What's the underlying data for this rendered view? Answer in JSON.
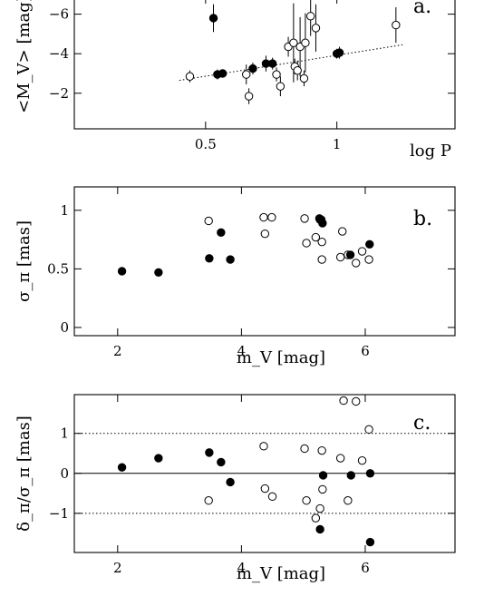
{
  "chart_data": [
    {
      "type": "scatter",
      "panel_label": "a.",
      "xlabel": "log P",
      "ylabel": "<M_V> [mag]",
      "xlim": [
        0,
        1.45
      ],
      "ylim": [
        -0.2,
        -6.9
      ],
      "y_inverted": true,
      "xticks": [
        0.5,
        1
      ],
      "xtick_labels": [
        "0.5",
        "1"
      ],
      "yticks": [
        -2,
        -4,
        -6
      ],
      "ytick_labels": [
        "−2",
        "−4",
        "−6"
      ],
      "fit_line": {
        "x": [
          0.4,
          1.25
        ],
        "y": [
          -2.65,
          -4.45
        ],
        "style": "dotted"
      },
      "filled": {
        "x": [
          0.53,
          0.545,
          0.565,
          0.68,
          0.73,
          0.755,
          1.0,
          1.01
        ],
        "y": [
          -5.8,
          -2.95,
          -3.0,
          -3.25,
          -3.5,
          -3.5,
          -4.0,
          -4.05
        ],
        "err": [
          0.7,
          0.25,
          0.2,
          0.3,
          0.4,
          0.3,
          0.25,
          0.3
        ]
      },
      "open": {
        "x": [
          0.44,
          0.655,
          0.665,
          0.77,
          0.785,
          0.815,
          0.835,
          0.84,
          0.85,
          0.86,
          0.875,
          0.88,
          0.9,
          0.92,
          1.225
        ],
        "y": [
          -2.85,
          -2.95,
          -1.85,
          -2.95,
          -2.35,
          -4.35,
          -4.55,
          -3.35,
          -3.15,
          -4.35,
          -2.75,
          -4.55,
          -5.9,
          -5.3,
          -5.45
        ],
        "err": [
          0.3,
          0.5,
          0.4,
          0.35,
          0.5,
          0.5,
          2.0,
          0.4,
          0.5,
          1.5,
          0.4,
          1.5,
          1.0,
          1.2,
          0.9
        ]
      }
    },
    {
      "type": "scatter",
      "panel_label": "b.",
      "xlabel": "m_V [mag]",
      "ylabel": "σ_π [mas]",
      "xlim": [
        1.3,
        7.45
      ],
      "ylim": [
        -0.07,
        1.2
      ],
      "xticks": [
        2,
        4,
        6
      ],
      "xtick_labels": [
        "2",
        "4",
        "6"
      ],
      "yticks": [
        0,
        0.5,
        1
      ],
      "ytick_labels": [
        "0",
        "0.5",
        "1"
      ],
      "filled": {
        "x": [
          2.07,
          2.66,
          3.48,
          3.67,
          3.82,
          5.26,
          5.29,
          5.31,
          5.76,
          6.07
        ],
        "y": [
          0.48,
          0.47,
          0.59,
          0.81,
          0.58,
          0.93,
          0.92,
          0.89,
          0.62,
          0.71
        ]
      },
      "open": {
        "x": [
          3.47,
          4.36,
          4.38,
          4.49,
          5.02,
          5.05,
          5.2,
          5.27,
          5.3,
          5.3,
          5.6,
          5.63,
          5.72,
          5.85,
          5.95,
          6.06
        ],
        "y": [
          0.91,
          0.94,
          0.8,
          0.94,
          0.93,
          0.72,
          0.77,
          0.92,
          0.73,
          0.58,
          0.6,
          0.82,
          0.62,
          0.55,
          0.65,
          0.58
        ]
      }
    },
    {
      "type": "scatter",
      "panel_label": "c.",
      "xlabel": "m_V [mag]",
      "ylabel": "δ_π/σ_π [mas]",
      "xlim": [
        1.3,
        7.45
      ],
      "ylim": [
        -1.98,
        1.97
      ],
      "xticks": [
        2,
        4,
        6
      ],
      "xtick_labels": [
        "2",
        "4",
        "6"
      ],
      "yticks": [
        -1,
        0,
        1
      ],
      "ytick_labels": [
        "−1",
        "0",
        "1"
      ],
      "ref_lines": [
        1,
        -1
      ],
      "zero_line": 0,
      "filled": {
        "x": [
          2.07,
          2.66,
          3.48,
          3.67,
          3.82,
          5.27,
          5.32,
          5.77,
          6.08,
          6.08
        ],
        "y": [
          0.15,
          0.38,
          0.52,
          0.28,
          -0.22,
          -1.4,
          -0.05,
          -0.05,
          0.0,
          -1.72
        ]
      },
      "open": {
        "x": [
          3.47,
          4.36,
          4.38,
          4.5,
          5.02,
          5.05,
          5.2,
          5.27,
          5.3,
          5.31,
          5.6,
          5.65,
          5.72,
          5.85,
          5.95,
          6.06
        ],
        "y": [
          -0.68,
          0.68,
          -0.38,
          -0.58,
          0.62,
          -0.68,
          -1.12,
          -0.88,
          0.57,
          -0.4,
          0.38,
          1.82,
          -0.68,
          1.8,
          0.32,
          1.1
        ]
      }
    }
  ]
}
